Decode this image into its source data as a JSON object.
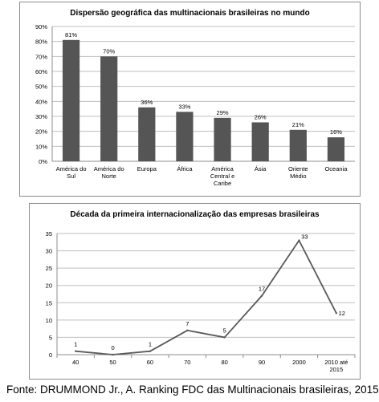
{
  "chart_data": [
    {
      "type": "bar",
      "title": "Dispersão geográfica das multinacionais brasileiras no mundo",
      "categories": [
        [
          "América do",
          "Sul"
        ],
        [
          "América do",
          "Norte"
        ],
        [
          "Europa"
        ],
        [
          "África"
        ],
        [
          "América",
          "Central e",
          "Caribe"
        ],
        [
          "Ásia"
        ],
        [
          "Oriente",
          "Médio"
        ],
        [
          "Oceania"
        ]
      ],
      "values": [
        81,
        70,
        36,
        33,
        29,
        26,
        21,
        16
      ],
      "value_labels": [
        "81%",
        "70%",
        "36%",
        "33%",
        "29%",
        "26%",
        "21%",
        "16%"
      ],
      "yticks": [
        "0%",
        "10%",
        "20%",
        "30%",
        "40%",
        "50%",
        "60%",
        "70%",
        "80%",
        "90%"
      ],
      "ylim": [
        0,
        90
      ],
      "grid": true,
      "colors": {
        "bar": "#555555",
        "grid": "#bfbfbf",
        "axis": "#8c8c8c"
      }
    },
    {
      "type": "line",
      "title": "Década da primeira internacionalização das empresas brasileiras",
      "categories": [
        [
          "40"
        ],
        [
          "50"
        ],
        [
          "60"
        ],
        [
          "70"
        ],
        [
          "80"
        ],
        [
          "90"
        ],
        [
          "2000"
        ],
        [
          "2010 até",
          "2015"
        ]
      ],
      "values": [
        1,
        0,
        1,
        7,
        5,
        17,
        33,
        12
      ],
      "value_labels": [
        "1",
        "0",
        "1",
        "7",
        "5",
        "17",
        "33",
        "12"
      ],
      "yticks": [
        "0",
        "5",
        "10",
        "15",
        "20",
        "25",
        "30",
        "35"
      ],
      "ylim": [
        0,
        35
      ],
      "grid": true,
      "colors": {
        "line": "#595959",
        "grid": "#bfbfbf",
        "axis": "#8c8c8c"
      }
    }
  ],
  "source": "Fonte: DRUMMOND Jr., A. Ranking FDC das Multinacionais brasileiras, 2015."
}
